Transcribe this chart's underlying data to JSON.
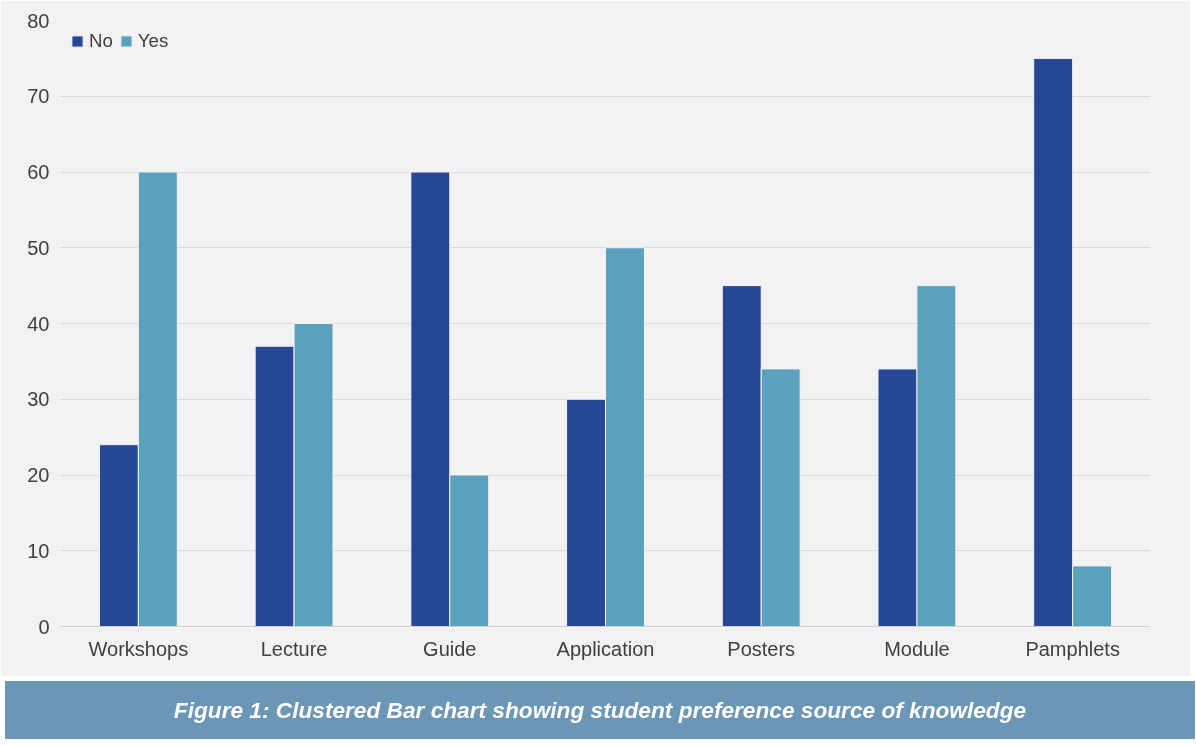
{
  "chart_data": {
    "type": "bar",
    "categories": [
      "Workshops",
      "Lecture",
      "Guide",
      "Application",
      "Posters",
      "Module",
      "Pamphlets"
    ],
    "series": [
      {
        "name": "No",
        "color": "#264796",
        "values": [
          24,
          37,
          60,
          30,
          45,
          34,
          75
        ]
      },
      {
        "name": "Yes",
        "color": "#5ba0bd",
        "values": [
          60,
          40,
          20,
          50,
          34,
          45,
          8
        ]
      }
    ],
    "ylim": [
      0,
      80
    ],
    "yticks": [
      0,
      10,
      20,
      30,
      40,
      50,
      60,
      70,
      80
    ],
    "grid": "y",
    "legend": "top left",
    "annotations": [
      "Figure 1: Clustered Bar chart showing student preference source of knowledge"
    ]
  }
}
